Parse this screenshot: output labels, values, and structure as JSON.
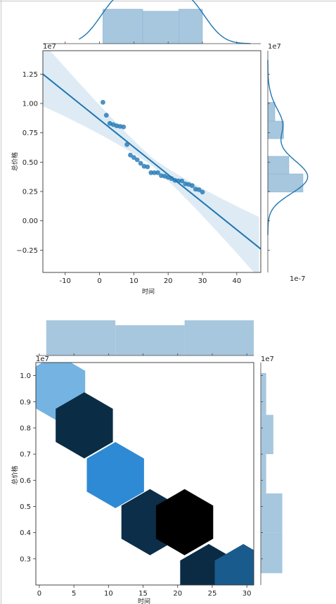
{
  "chart_data": [
    {
      "type": "scatter",
      "kind": "jointplot-reg",
      "xlabel": "时间",
      "ylabel": "总价格",
      "x_axis_multiplier_note": "1e-7",
      "y_axis_multiplier_note": "1e7",
      "right_marginal_multiplier_note": "1e7",
      "xlim": [
        -16.5,
        47
      ],
      "ylim": [
        -0.44,
        1.45
      ],
      "xticks": [
        "-10",
        "0",
        "10",
        "20",
        "30",
        "40"
      ],
      "yticks": [
        "−0.25",
        "0.00",
        "0.25",
        "0.50",
        "0.75",
        "1.00",
        "1.25"
      ],
      "xtick_values": [
        -10,
        0,
        10,
        20,
        30,
        40
      ],
      "ytick_values": [
        -0.25,
        0,
        0.25,
        0.5,
        0.75,
        1.0,
        1.25
      ],
      "points": [
        [
          1,
          1.01
        ],
        [
          2,
          0.9
        ],
        [
          3,
          0.83
        ],
        [
          4,
          0.82
        ],
        [
          5,
          0.81
        ],
        [
          6,
          0.805
        ],
        [
          7,
          0.8
        ],
        [
          8,
          0.65
        ],
        [
          9,
          0.56
        ],
        [
          10,
          0.54
        ],
        [
          11,
          0.52
        ],
        [
          12,
          0.49
        ],
        [
          13,
          0.465
        ],
        [
          14,
          0.46
        ],
        [
          15,
          0.41
        ],
        [
          16,
          0.41
        ],
        [
          17,
          0.41
        ],
        [
          18,
          0.385
        ],
        [
          19,
          0.38
        ],
        [
          20,
          0.37
        ],
        [
          21,
          0.36
        ],
        [
          22,
          0.345
        ],
        [
          23,
          0.34
        ],
        [
          24,
          0.34
        ],
        [
          25,
          0.315
        ],
        [
          26,
          0.31
        ],
        [
          27,
          0.3
        ],
        [
          28,
          0.27
        ],
        [
          29,
          0.265
        ],
        [
          30,
          0.245
        ]
      ],
      "regression": {
        "x": [
          -16.5,
          47
        ],
        "y": [
          1.25,
          -0.24
        ]
      },
      "top_hist_bins": [
        [
          1,
          12.6,
          1.0
        ],
        [
          12.6,
          23.1,
          0.94
        ],
        [
          23.1,
          30,
          1.0
        ]
      ],
      "right_hist_bins": [
        [
          0.245,
          0.4,
          1.0
        ],
        [
          0.4,
          0.55,
          0.6
        ],
        [
          0.55,
          0.7,
          0.0
        ],
        [
          0.7,
          0.85,
          0.45
        ],
        [
          0.85,
          1.01,
          0.2
        ]
      ],
      "color": "#1f77b4"
    },
    {
      "type": "heatmap",
      "kind": "jointplot-hex",
      "xlabel": "时间",
      "ylabel": "总价格",
      "y_axis_multiplier_note": "1e7",
      "right_marginal_multiplier_note": "1e7",
      "xlim": [
        -0.5,
        31
      ],
      "ylim": [
        0.2,
        1.05
      ],
      "xticks": [
        "0",
        "5",
        "10",
        "15",
        "20",
        "25",
        "30"
      ],
      "yticks": [
        "0.3",
        "0.4",
        "0.5",
        "0.6",
        "0.7",
        "0.8",
        "0.9",
        "1.0"
      ],
      "xtick_values": [
        0,
        5,
        10,
        15,
        20,
        25,
        30
      ],
      "ytick_values": [
        0.3,
        0.4,
        0.5,
        0.6,
        0.7,
        0.8,
        0.9,
        1.0
      ],
      "hexbins": [
        {
          "x": 2.5,
          "y": 0.955,
          "count": 1,
          "color": "#74b3e2"
        },
        {
          "x": 6.5,
          "y": 0.81,
          "count": 5,
          "color": "#0b2c45"
        },
        {
          "x": 11.0,
          "y": 0.62,
          "count": 3,
          "color": "#2e8ad4"
        },
        {
          "x": 16.0,
          "y": 0.44,
          "count": 6,
          "color": "#0c2e48"
        },
        {
          "x": 21.0,
          "y": 0.44,
          "count": 7,
          "color": "#000000"
        },
        {
          "x": 24.5,
          "y": 0.23,
          "count": 6,
          "color": "#0b2b44"
        },
        {
          "x": 29.5,
          "y": 0.23,
          "count": 3,
          "color": "#1a5b8e"
        }
      ],
      "top_hist_bins": [
        [
          1,
          11,
          1.0
        ],
        [
          11,
          21,
          0.86
        ],
        [
          21,
          31,
          1.0
        ]
      ],
      "right_hist_bins": [
        [
          0.245,
          0.4,
          0.6
        ],
        [
          0.4,
          0.55,
          0.6
        ],
        [
          0.55,
          0.7,
          0.15
        ],
        [
          0.7,
          0.85,
          0.35
        ],
        [
          0.85,
          1.01,
          0.15
        ]
      ],
      "color": "#a6c7de"
    }
  ]
}
